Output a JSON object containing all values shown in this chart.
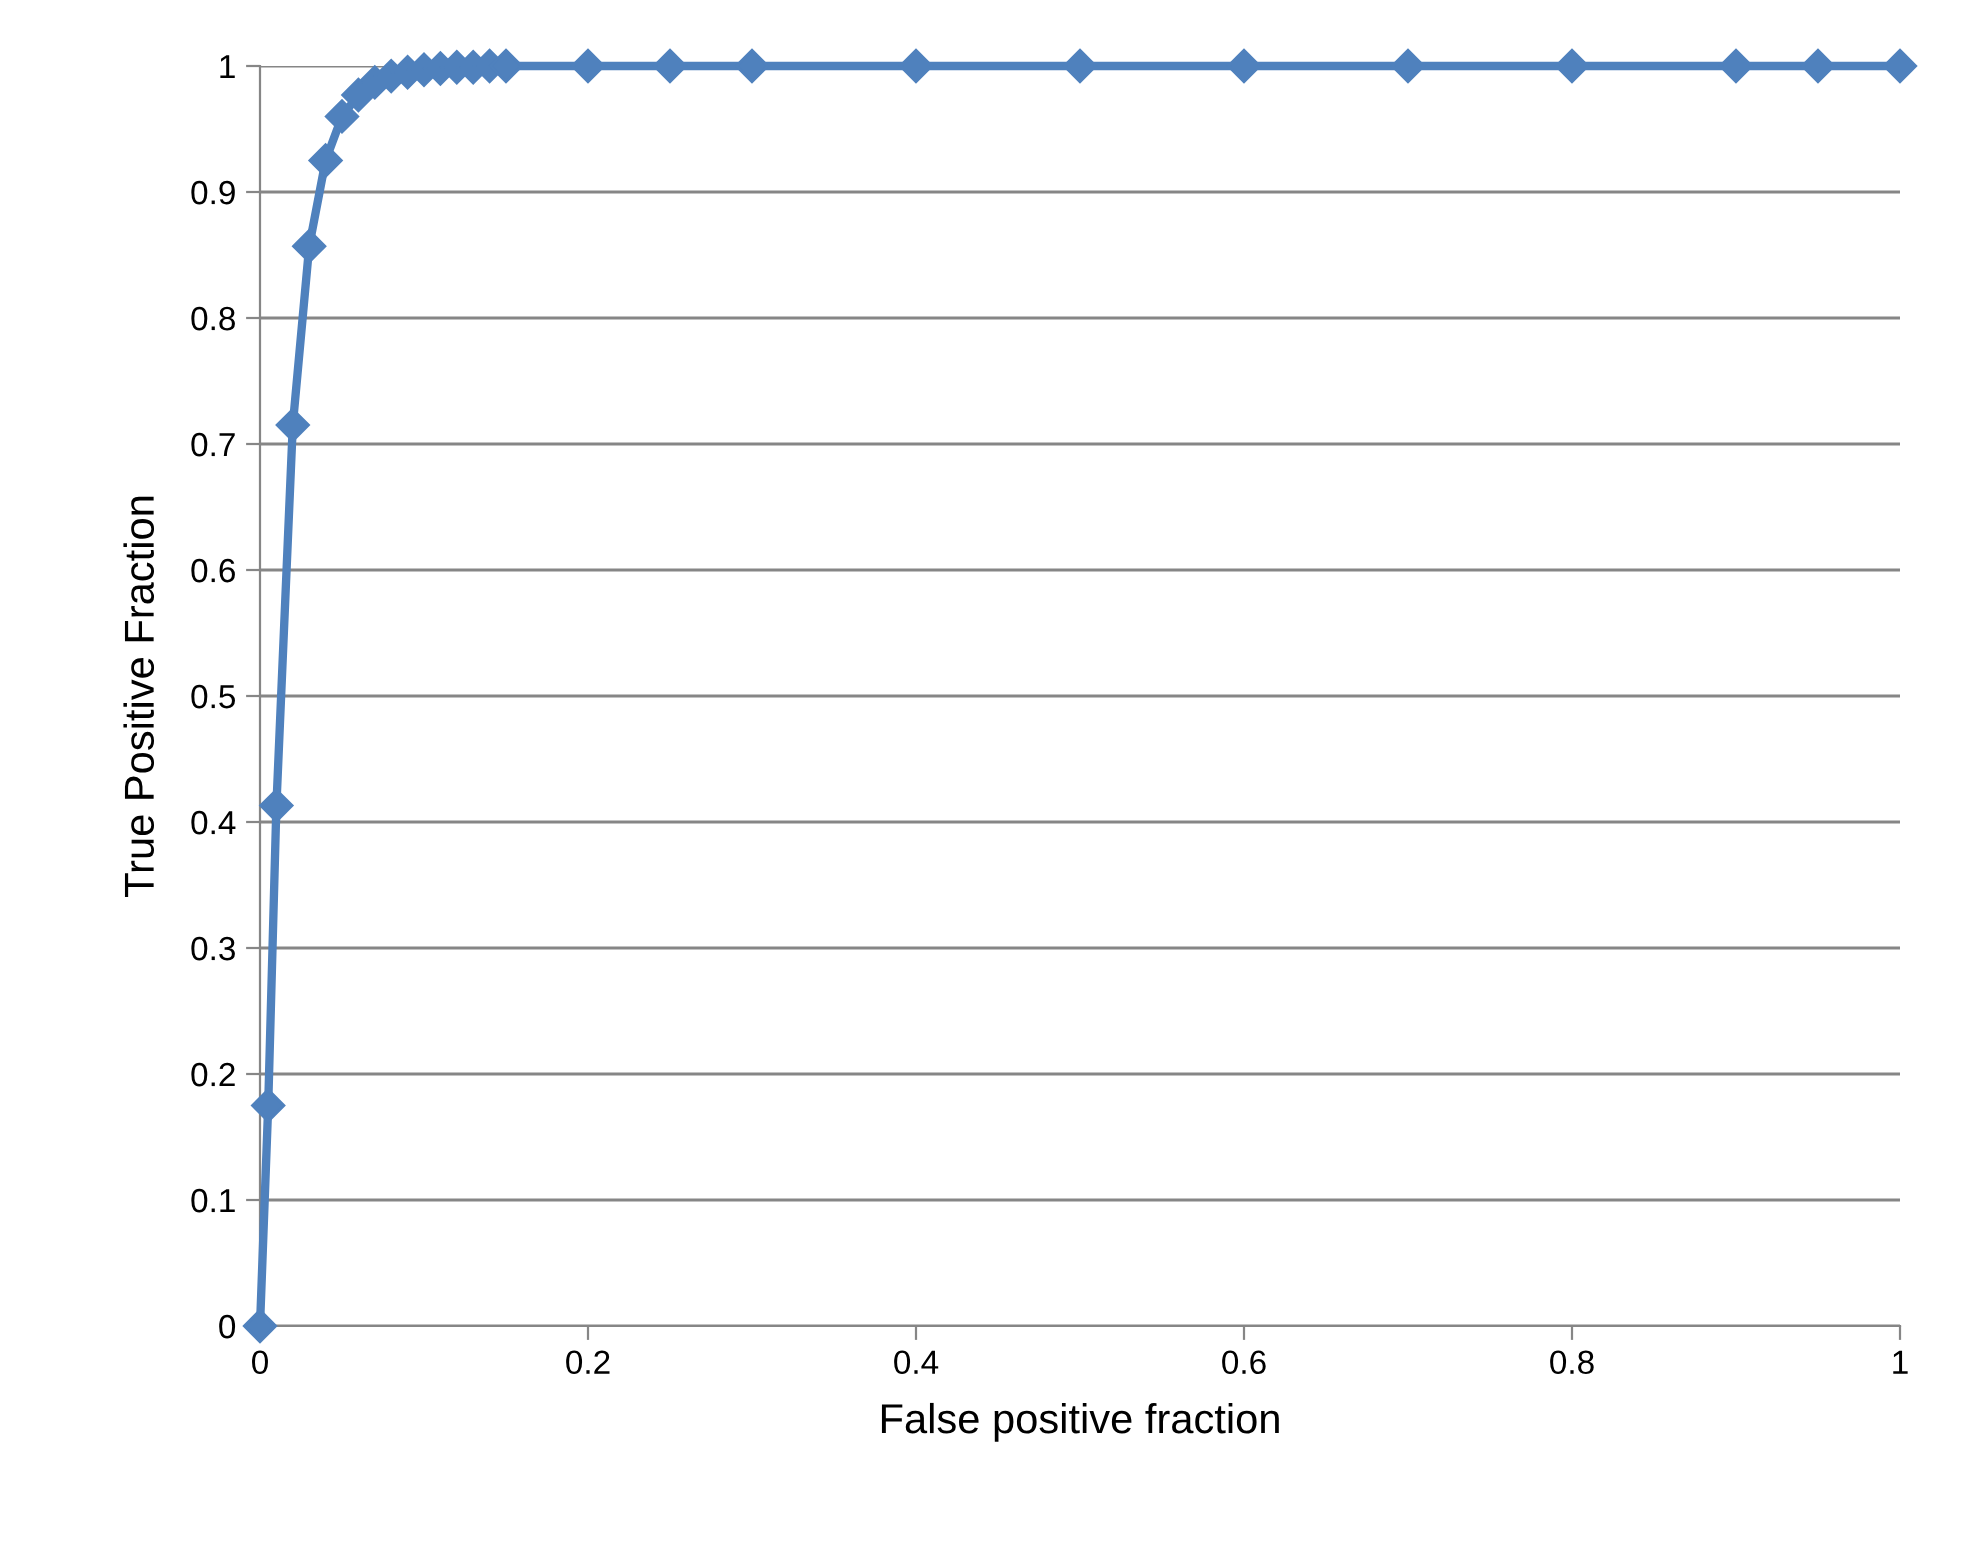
{
  "chart_data": {
    "type": "line",
    "xlabel": "False positive fraction",
    "ylabel": "True Positive Fraction",
    "series": [
      {
        "color": "#4f81bd",
        "x": [
          0,
          0.005,
          0.01,
          0.02,
          0.03,
          0.04,
          0.05,
          0.06,
          0.07,
          0.08,
          0.09,
          0.1,
          0.11,
          0.12,
          0.13,
          0.14,
          0.15,
          0.2,
          0.25,
          0.3,
          0.4,
          0.5,
          0.6,
          0.7,
          0.8,
          0.9,
          0.95,
          1
        ],
        "values": [
          0,
          0.175,
          0.413,
          0.715,
          0.857,
          0.925,
          0.96,
          0.977,
          0.987,
          0.992,
          0.995,
          0.997,
          0.998,
          0.999,
          0.999,
          1,
          1,
          1,
          1,
          1,
          1,
          1,
          1,
          1,
          1,
          1,
          1,
          1
        ]
      }
    ],
    "xlim": [
      0,
      1
    ],
    "xticks": [
      0,
      0.2,
      0.4,
      0.6,
      0.8,
      1
    ],
    "ylim": [
      0,
      1
    ],
    "yticks": [
      0,
      0.1,
      0.2,
      0.3,
      0.4,
      0.5,
      0.6,
      0.7,
      0.8,
      0.9,
      1
    ],
    "grid": "y",
    "marker": "diamond",
    "line_style": "solid"
  }
}
